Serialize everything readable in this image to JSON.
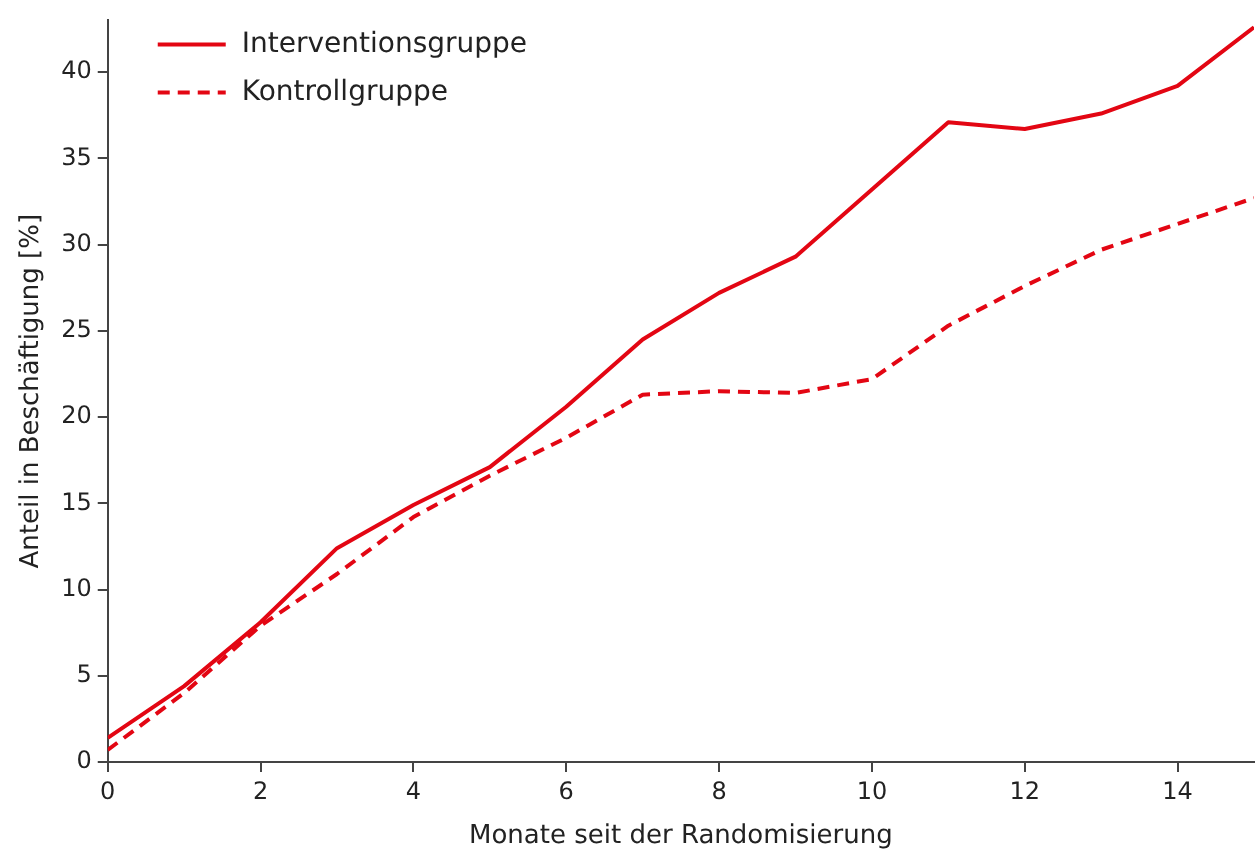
{
  "chart_data": {
    "type": "line",
    "xlabel": "Monate seit der Randomisierung",
    "ylabel": "Anteil in Beschäftigung [%]",
    "x": [
      0,
      1,
      2,
      3,
      4,
      5,
      6,
      7,
      8,
      9,
      10,
      11,
      12,
      13,
      14,
      15
    ],
    "series": [
      {
        "name": "Interventionsgruppe",
        "color": "#e30613",
        "line_style": "solid",
        "values": [
          1.4,
          4.4,
          8.1,
          12.4,
          14.9,
          17.1,
          20.6,
          24.5,
          27.2,
          29.3,
          33.2,
          37.1,
          36.7,
          37.6,
          39.2,
          42.6
        ]
      },
      {
        "name": "Kontrollgruppe",
        "color": "#e30613",
        "line_style": "dashed",
        "values": [
          0.7,
          4.0,
          7.9,
          10.9,
          14.2,
          16.6,
          18.8,
          21.3,
          21.5,
          21.4,
          22.2,
          25.3,
          27.6,
          29.7,
          31.2,
          32.7
        ]
      }
    ],
    "xlim": [
      0,
      15
    ],
    "xticks": [
      0,
      2,
      4,
      6,
      8,
      10,
      12,
      14
    ],
    "ylim": [
      0,
      43
    ],
    "yticks": [
      0,
      5,
      10,
      15,
      20,
      25,
      30,
      35,
      40
    ],
    "grid": false,
    "legend": "top left",
    "marker": "none"
  }
}
